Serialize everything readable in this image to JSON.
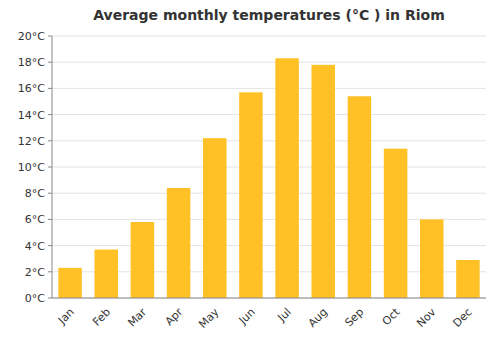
{
  "chart_data": {
    "type": "bar",
    "title": "Average monthly temperatures (°C ) in Riom",
    "categories": [
      "Jan",
      "Feb",
      "Mar",
      "Apr",
      "May",
      "Jun",
      "Jul",
      "Aug",
      "Sep",
      "Oct",
      "Nov",
      "Dec"
    ],
    "values": [
      2.3,
      3.7,
      5.8,
      8.4,
      12.2,
      15.7,
      18.3,
      17.8,
      15.4,
      11.4,
      6.0,
      2.9
    ],
    "color": "#FFC125",
    "ylim": [
      0,
      20
    ],
    "yticks": [
      {
        "value": 0,
        "label": "0°C"
      },
      {
        "value": 2,
        "label": "2°C"
      },
      {
        "value": 4,
        "label": "4°C"
      },
      {
        "value": 6,
        "label": "6°C"
      },
      {
        "value": 8,
        "label": "8°C"
      },
      {
        "value": 10,
        "label": "10°C"
      },
      {
        "value": 12,
        "label": "12°C"
      },
      {
        "value": 14,
        "label": "14°C"
      },
      {
        "value": 16,
        "label": "16°C"
      },
      {
        "value": 18,
        "label": "18°C"
      },
      {
        "value": 20,
        "label": "20°C"
      }
    ],
    "grid": true
  }
}
